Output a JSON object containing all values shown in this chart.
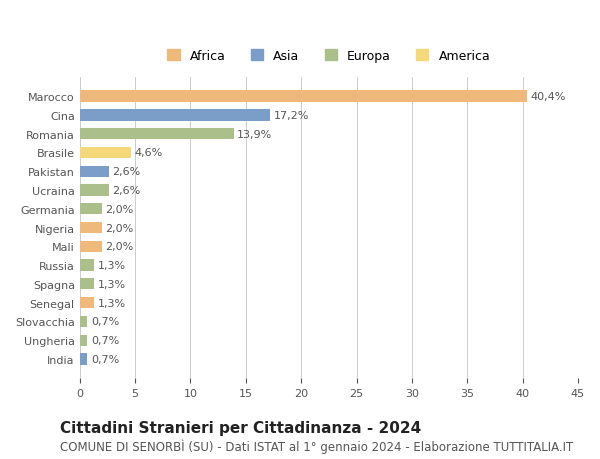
{
  "countries": [
    "Marocco",
    "Cina",
    "Romania",
    "Brasile",
    "Pakistan",
    "Ucraina",
    "Germania",
    "Nigeria",
    "Mali",
    "Russia",
    "Spagna",
    "Senegal",
    "Slovacchia",
    "Ungheria",
    "India"
  ],
  "values": [
    40.4,
    17.2,
    13.9,
    4.6,
    2.6,
    2.6,
    2.0,
    2.0,
    2.0,
    1.3,
    1.3,
    1.3,
    0.7,
    0.7,
    0.7
  ],
  "labels": [
    "40,4%",
    "17,2%",
    "13,9%",
    "4,6%",
    "2,6%",
    "2,6%",
    "2,0%",
    "2,0%",
    "2,0%",
    "1,3%",
    "1,3%",
    "1,3%",
    "0,7%",
    "0,7%",
    "0,7%"
  ],
  "continents": [
    "Africa",
    "Asia",
    "Europa",
    "America",
    "Asia",
    "Europa",
    "Europa",
    "Africa",
    "Africa",
    "Europa",
    "Europa",
    "Africa",
    "Europa",
    "Europa",
    "Asia"
  ],
  "colors": {
    "Africa": "#F0B97C",
    "Asia": "#7B9EC8",
    "Europa": "#AABF8A",
    "America": "#F5D87A"
  },
  "legend_order": [
    "Africa",
    "Asia",
    "Europa",
    "America"
  ],
  "title": "Cittadini Stranieri per Cittadinanza - 2024",
  "subtitle": "COMUNE DI SENORBÌ (SU) - Dati ISTAT al 1° gennaio 2024 - Elaborazione TUTTITALIA.IT",
  "xlim": [
    0,
    45
  ],
  "xticks": [
    0,
    5,
    10,
    15,
    20,
    25,
    30,
    35,
    40,
    45
  ],
  "background_color": "#ffffff",
  "grid_color": "#cccccc",
  "bar_height": 0.6,
  "title_fontsize": 11,
  "subtitle_fontsize": 8.5,
  "label_fontsize": 8,
  "tick_fontsize": 8,
  "legend_fontsize": 9
}
